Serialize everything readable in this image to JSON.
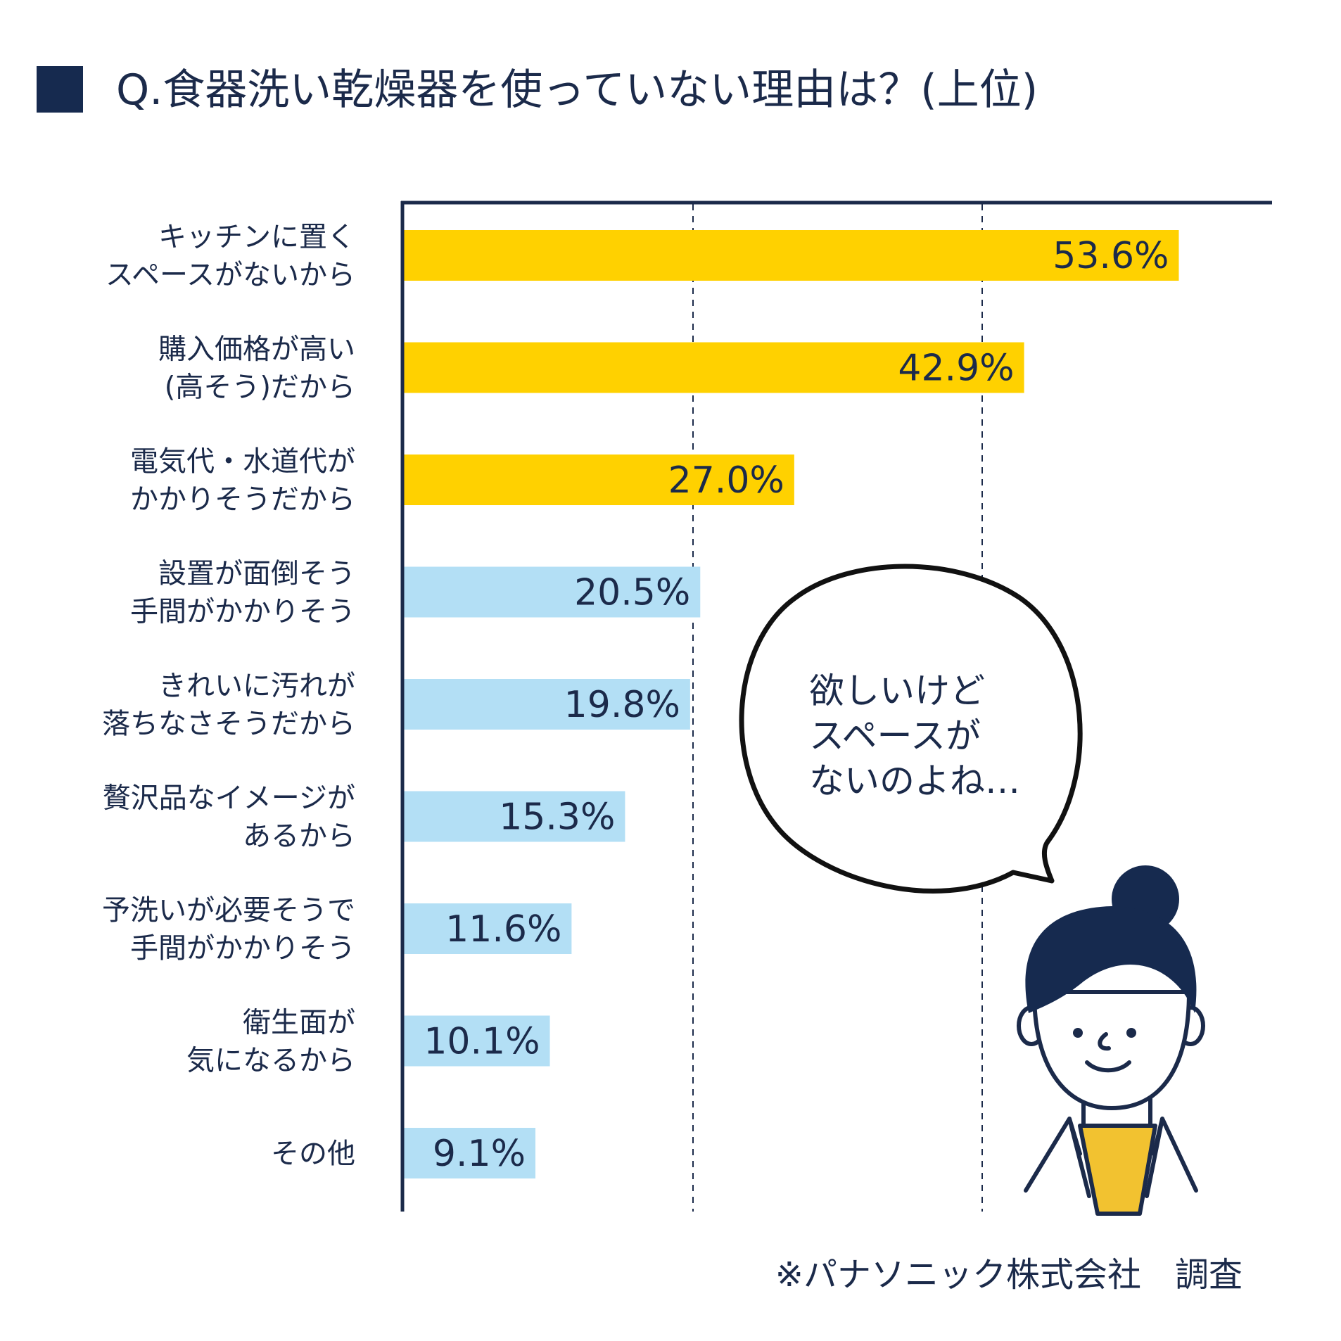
{
  "title": "Q.食器洗い乾燥器を使っていない理由は？(上位)",
  "chart_data": {
    "type": "bar",
    "orientation": "horizontal",
    "categories": [
      "キッチンに置く\nスペースがないから",
      "購入価格が高い\n(高そう)だから",
      "電気代・水道代が\nかかりそうだから",
      "設置が面倒そう\n手間がかかりそう",
      "きれいに汚れが\n落ちなさそうだから",
      "贅沢品なイメージが\nあるから",
      "予洗いが必要そうで\n手間がかかりそう",
      "衛生面が\n気になるから",
      "その他"
    ],
    "values": [
      53.6,
      42.9,
      27.0,
      20.5,
      19.8,
      15.3,
      11.6,
      10.1,
      9.1
    ],
    "value_labels": [
      "53.6%",
      "42.9%",
      "27.0%",
      "20.5%",
      "19.8%",
      "15.3%",
      "11.6%",
      "10.1%",
      "9.1%"
    ],
    "xlim": [
      0,
      60
    ],
    "gridlines": [
      20,
      40
    ],
    "grid": "dashed vertical",
    "colors": {
      "highlight": "#ffd100",
      "normal": "#b3dff5",
      "axis": "#1b2a4a",
      "text": "#1b2a4a"
    },
    "highlight_count": 3
  },
  "speech_bubble": "欲しいけど\nスペースが\nないのよね…",
  "source": "※パナソニック株式会社　調査"
}
